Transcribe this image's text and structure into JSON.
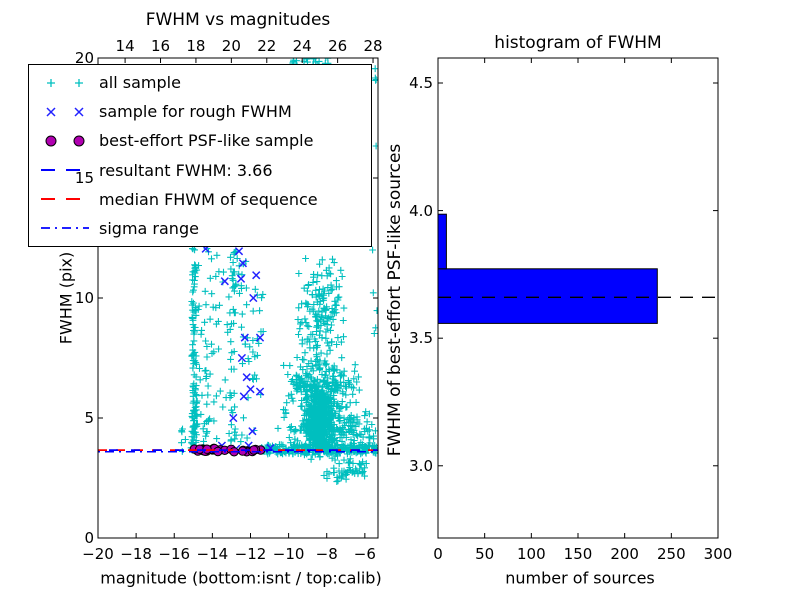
{
  "figure": {
    "background": "#ffffff"
  },
  "chart_data": [
    {
      "type": "scatter",
      "title": "FWHM vs magnitudes",
      "xlabel": "magnitude (bottom:isnt / top:calib)",
      "ylabel": "FWHM (pix)",
      "xlim": [
        -20,
        -5.31
      ],
      "ylim": [
        0,
        20
      ],
      "x2lim": [
        12.47,
        28.28
      ],
      "xticks": {
        "values": [
          -20,
          -18,
          -16,
          -14,
          -12,
          -10,
          -8,
          -6
        ],
        "labels": [
          "−20",
          "−18",
          "−16",
          "−14",
          "−12",
          "−10",
          "−8",
          "−6"
        ]
      },
      "x2ticks": {
        "values": [
          14,
          16,
          18,
          20,
          22,
          24,
          26,
          28
        ],
        "labels": [
          "14",
          "16",
          "18",
          "20",
          "22",
          "24",
          "26",
          "28"
        ]
      },
      "yticks": {
        "values": [
          0,
          5,
          10,
          15,
          20
        ],
        "labels": [
          "0",
          "5",
          "10",
          "15",
          "20"
        ]
      },
      "legend": {
        "items": [
          {
            "label": "all sample",
            "marker": "plus",
            "color": "#00bfbf"
          },
          {
            "label": "sample for rough FWHM",
            "marker": "x",
            "color": "#2222ff"
          },
          {
            "label": "best-effort PSF-like sample",
            "marker": "dot",
            "color": "#b000b0"
          },
          {
            "label": "resultant FWHM: 3.66",
            "marker": "dash",
            "color": "#0000ff"
          },
          {
            "label": "median FHWM of sequence",
            "marker": "dash",
            "color": "#ff0000"
          },
          {
            "label": "sigma range",
            "marker": "dashdot",
            "color": "#0000ff"
          }
        ]
      },
      "series": {
        "all_sample": {
          "marker": "plus",
          "color": "#00bfbf",
          "clusters": [
            {
              "x": [
                -15.08,
                -14.82
              ],
              "y": [
                3.55,
                12.1
              ],
              "n": 90,
              "mode": "uniform"
            },
            {
              "x": [
                -15.12,
                -14.78
              ],
              "y": [
                3.55,
                6.0
              ],
              "n": 35,
              "mode": "uniform"
            },
            {
              "x": [
                -15.65,
                -15.1
              ],
              "y": [
                3.6,
                4.6
              ],
              "n": 6,
              "mode": "uniform"
            },
            {
              "x": [
                -14.75,
                -11.3
              ],
              "y": [
                3.75,
                12.1
              ],
              "n": 120,
              "mode": "uniform"
            },
            {
              "x": [
                -13.05,
                -12.75
              ],
              "y": [
                4.0,
                12.1
              ],
              "n": 22,
              "mode": "uniform"
            },
            {
              "x": [
                -14.45,
                -14.2
              ],
              "y": [
                4.0,
                9.0
              ],
              "n": 14,
              "mode": "uniform"
            },
            {
              "x": [
                -9.85,
                -7.9
              ],
              "y": [
                19.5,
                20.05
              ],
              "n": 28,
              "mode": "uniform"
            },
            {
              "x": [
                -6.4,
                -5.4
              ],
              "y": [
                18.8,
                20.0
              ],
              "n": 8,
              "mode": "uniform"
            },
            {
              "x": [
                -9.7,
                -7.0
              ],
              "y": [
                6.5,
                12.1
              ],
              "n": 170,
              "mode": "core"
            },
            {
              "x": [
                -10.4,
                -6.2
              ],
              "y": [
                5.2,
                7.5
              ],
              "n": 200,
              "mode": "core"
            },
            {
              "x": [
                -9.3,
                -7.5
              ],
              "y": [
                3.45,
                6.5
              ],
              "n": 430,
              "mode": "core"
            },
            {
              "x": [
                -10.7,
                -5.35
              ],
              "y": [
                3.15,
                5.8
              ],
              "n": 260,
              "mode": "core"
            },
            {
              "x": [
                -11.45,
                -5.35
              ],
              "y": [
                3.5,
                3.9
              ],
              "n": 200,
              "mode": "uniform"
            },
            {
              "x": [
                -8.4,
                -5.4
              ],
              "y": [
                2.2,
                3.3
              ],
              "n": 50,
              "mode": "core"
            },
            {
              "x": [
                -5.6,
                -5.35
              ],
              "y": [
                4.0,
                18.0
              ],
              "n": 8,
              "mode": "uniform"
            }
          ]
        },
        "rough_fwhm": {
          "marker": "x",
          "color": "#2222ff",
          "points": [
            [
              -14.35,
              12.05
            ],
            [
              -12.6,
              11.95
            ],
            [
              -12.4,
              11.45
            ],
            [
              -13.35,
              10.7
            ],
            [
              -12.5,
              10.8
            ],
            [
              -11.7,
              10.95
            ],
            [
              -11.85,
              10.0
            ],
            [
              -12.3,
              8.35
            ],
            [
              -11.5,
              8.35
            ],
            [
              -12.45,
              7.5
            ],
            [
              -12.2,
              6.7
            ],
            [
              -12.0,
              6.2
            ],
            [
              -11.5,
              6.1
            ],
            [
              -12.35,
              5.9
            ],
            [
              -12.9,
              5.0
            ],
            [
              -11.9,
              4.45
            ],
            [
              -13.5,
              3.85
            ],
            [
              -12.75,
              3.72
            ],
            [
              -12.1,
              3.85
            ],
            [
              -11.55,
              3.68
            ],
            [
              -10.95,
              3.75
            ],
            [
              -14.0,
              3.7
            ]
          ]
        },
        "psf_like": {
          "marker": "dot",
          "color": "#b000b0",
          "edge": "#000000",
          "cluster": {
            "x": [
              -15.0,
              -11.35
            ],
            "y": [
              3.58,
              3.74
            ],
            "n": 28
          }
        }
      },
      "lines": [
        {
          "name": "resultant",
          "value": 3.66,
          "style": "dashed",
          "color": "#0000ff"
        },
        {
          "name": "median",
          "value": 3.66,
          "style": "dashed",
          "color": "#ff0000"
        },
        {
          "name": "sigma",
          "value": 3.66,
          "style": "dashdot",
          "color": "#0000ff"
        }
      ],
      "seed": 42
    },
    {
      "type": "histogram-horizontal",
      "title": "histogram of FWHM",
      "xlabel": "number of sources",
      "ylabel": "FWHM of best-effort PSF-like sources",
      "xlim": [
        0,
        300
      ],
      "ylim": [
        2.717,
        4.598
      ],
      "xticks": {
        "values": [
          0,
          50,
          100,
          150,
          200,
          250,
          300
        ],
        "labels": [
          "0",
          "50",
          "100",
          "150",
          "200",
          "250",
          "300"
        ]
      },
      "yticks": {
        "values": [
          3.0,
          3.5,
          4.0,
          4.5
        ],
        "labels": [
          "3.0",
          "3.5",
          "4.0",
          "4.5"
        ]
      },
      "bar_color": "#0000ff",
      "bar_edge": "#000000",
      "bins": [
        {
          "from": 3.558,
          "to": 3.772,
          "count": 235
        },
        {
          "from": 3.772,
          "to": 3.986,
          "count": 9
        }
      ],
      "median_line": {
        "value": 3.66,
        "style": "dashed",
        "color": "#000000"
      }
    }
  ]
}
